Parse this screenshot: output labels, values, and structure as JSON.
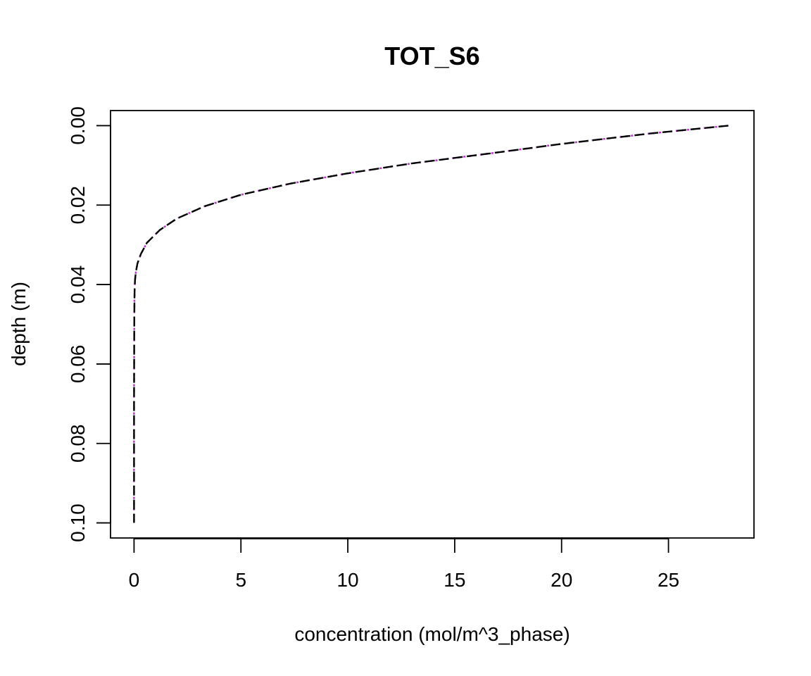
{
  "chart_data": {
    "type": "line",
    "title": "TOT_S6",
    "xlabel": "concentration (mol/m^3_phase)",
    "ylabel": "depth (m)",
    "xlim": [
      -1.1,
      29.0
    ],
    "ylim": [
      0.1038,
      -0.0038
    ],
    "y_inverted": true,
    "grid": false,
    "x_ticks": [
      0,
      5,
      10,
      15,
      20,
      25
    ],
    "x_tick_labels": [
      "0",
      "5",
      "10",
      "15",
      "20",
      "25"
    ],
    "y_ticks": [
      0.0,
      0.02,
      0.04,
      0.06,
      0.08,
      0.1
    ],
    "y_tick_labels": [
      "0.00",
      "0.02",
      "0.04",
      "0.06",
      "0.08",
      "0.10"
    ],
    "series": [
      {
        "color": "#22b8c8",
        "dash": "dotted",
        "x": [
          27.8,
          24.1,
          20.0,
          16.5,
          13.0,
          10.0,
          7.3,
          5.0,
          3.3,
          2.0,
          1.2,
          0.6,
          0.32,
          0.16,
          0.09,
          0.05,
          0.03,
          0.02,
          0.01,
          0.0,
          0.0
        ],
        "y": [
          0.0,
          0.002,
          0.0046,
          0.0071,
          0.0095,
          0.012,
          0.0146,
          0.0174,
          0.0203,
          0.0234,
          0.0263,
          0.0295,
          0.0323,
          0.0347,
          0.0367,
          0.0386,
          0.0405,
          0.0435,
          0.05,
          0.07,
          0.1
        ]
      },
      {
        "color": "#cc33cc",
        "dash": "dotted",
        "x": [
          27.8,
          24.1,
          20.0,
          16.5,
          13.0,
          10.0,
          7.3,
          5.0,
          3.3,
          2.0,
          1.2,
          0.6,
          0.32,
          0.16,
          0.09,
          0.05,
          0.03,
          0.02,
          0.01,
          0.0,
          0.0
        ],
        "y": [
          0.0,
          0.002,
          0.0046,
          0.0071,
          0.0095,
          0.012,
          0.0146,
          0.0174,
          0.0203,
          0.0234,
          0.0263,
          0.0295,
          0.0323,
          0.0347,
          0.0367,
          0.0386,
          0.0405,
          0.0435,
          0.05,
          0.07,
          0.1
        ]
      },
      {
        "color": "#000000",
        "dash": "dashed",
        "x": [
          27.8,
          24.1,
          20.0,
          16.5,
          13.0,
          10.0,
          7.3,
          5.0,
          3.3,
          2.0,
          1.2,
          0.6,
          0.32,
          0.16,
          0.09,
          0.05,
          0.03,
          0.02,
          0.01,
          0.0,
          0.0
        ],
        "y": [
          0.0,
          0.002,
          0.0046,
          0.0071,
          0.0095,
          0.012,
          0.0146,
          0.0174,
          0.0203,
          0.0234,
          0.0263,
          0.0295,
          0.0323,
          0.0347,
          0.0367,
          0.0386,
          0.0405,
          0.0435,
          0.05,
          0.07,
          0.1
        ]
      }
    ]
  }
}
